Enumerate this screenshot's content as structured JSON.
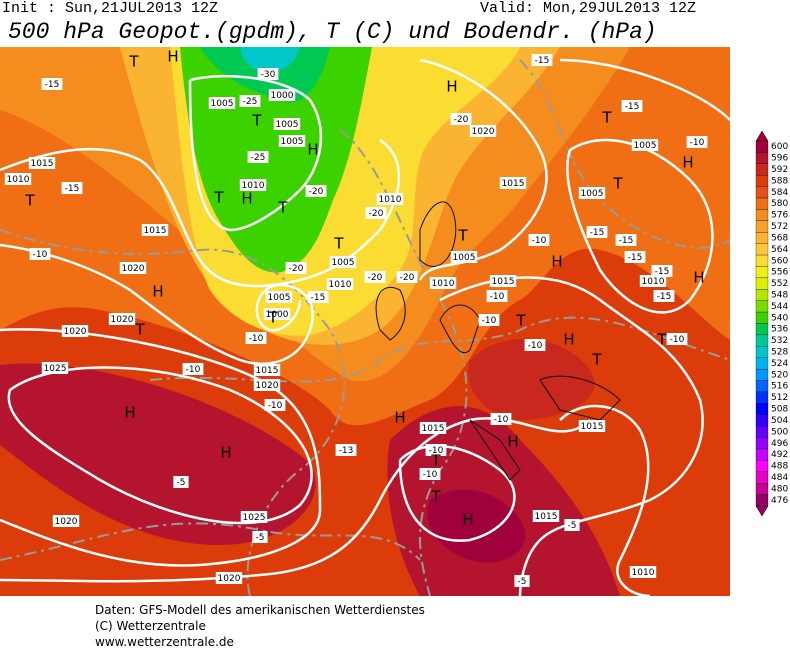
{
  "header": {
    "init": "Init : Sun,21JUL2013 12Z",
    "valid": "Valid: Mon,29JUL2013 12Z",
    "title": "500 hPa Geopot.(gpdm), T (C) und Bodendr. (hPa)"
  },
  "colorbar": {
    "labels": [
      "600",
      "596",
      "592",
      "588",
      "584",
      "580",
      "576",
      "572",
      "568",
      "564",
      "560",
      "556",
      "552",
      "548",
      "544",
      "540",
      "536",
      "532",
      "528",
      "524",
      "520",
      "516",
      "512",
      "508",
      "504",
      "500",
      "496",
      "492",
      "488",
      "484",
      "480",
      "476"
    ],
    "colors": [
      "#a0003c",
      "#b4142d",
      "#c8281e",
      "#dc3c0a",
      "#e65014",
      "#f06e14",
      "#f58c1e",
      "#faa028",
      "#fab432",
      "#fac83c",
      "#fadc32",
      "#f0f014",
      "#dcf000",
      "#b4e600",
      "#78dc00",
      "#3cd200",
      "#00c850",
      "#00c896",
      "#00c8c8",
      "#00b4f0",
      "#0096ff",
      "#0064ff",
      "#0032ff",
      "#0000ff",
      "#3200ff",
      "#6400ff",
      "#9600ff",
      "#c800ff",
      "#ff00ff",
      "#e600c8",
      "#c80096",
      "#960064"
    ]
  },
  "map": {
    "markers": [
      "H",
      "T",
      "H",
      "T",
      "H",
      "T",
      "T",
      "T",
      "H",
      "H",
      "T",
      "T",
      "T",
      "T",
      "H",
      "H",
      "H",
      "H",
      "T",
      "T",
      "H",
      "T",
      "H",
      "T",
      "H",
      "H",
      "T",
      "T",
      "H",
      "T"
    ],
    "isobar_labels": [
      "1015",
      "1010",
      "1020",
      "1015",
      "1020",
      "1020",
      "1025",
      "1015",
      "1020",
      "1005",
      "1000",
      "1010",
      "1005",
      "1010",
      "1005",
      "1000",
      "1005",
      "1005",
      "1010",
      "1020",
      "1015",
      "1005",
      "1010",
      "1015",
      "1005",
      "1005",
      "1010",
      "1015",
      "1015",
      "1015",
      "1025",
      "1020",
      "1020",
      "1010"
    ],
    "temperature_labels": [
      "-15",
      "-15",
      "-10",
      "-25",
      "-25",
      "-20",
      "-20",
      "-20",
      "-20",
      "-20",
      "-20",
      "-15",
      "-10",
      "-10",
      "-10",
      "-15",
      "-15",
      "-10",
      "-15",
      "-15",
      "-15",
      "-15",
      "-15",
      "-10",
      "-10",
      "-10",
      "-10",
      "-10",
      "-10",
      "-10",
      "-10",
      "-13",
      "-5",
      "-5",
      "-5",
      "-5",
      "-30"
    ]
  },
  "footer": [
    "Daten: GFS-Modell des amerikanischen Wetterdienstes",
    "(C) Wetterzentrale",
    "www.wetterzentrale.de"
  ]
}
